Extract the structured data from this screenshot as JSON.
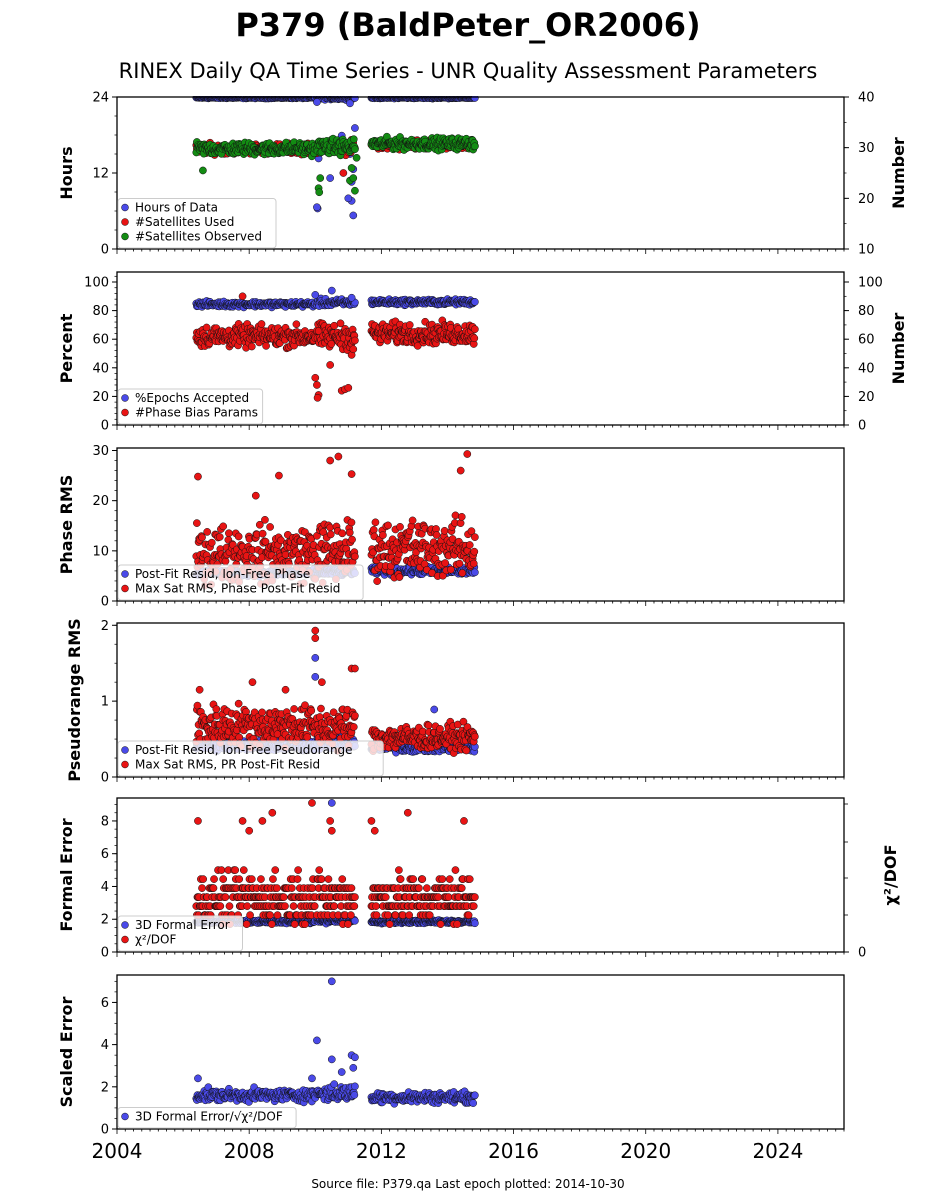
{
  "header": {
    "title": "P379 (BaldPeter_OR2006)",
    "subtitle": "RINEX Daily QA Time Series - UNR Quality Assessment Parameters",
    "footer": "Source file: P379.qa Last epoch plotted: 2014-10-30"
  },
  "colors": {
    "blue": "#4a4ae8",
    "red": "#e81414",
    "green": "#138c13",
    "edge": "#111111"
  },
  "chart_data": [
    {
      "type": "scatter",
      "panel": "hours",
      "ylabel": "Hours",
      "ylabel_right": "Number",
      "ylim": [
        0,
        24
      ],
      "yticks": [
        0,
        12,
        24
      ],
      "ylim_right": [
        10,
        40
      ],
      "yticks_right": [
        10,
        20,
        30,
        40
      ],
      "xlim": [
        2004,
        2026
      ],
      "legend_position": "lower-left",
      "series": [
        {
          "name": "Hours of Data",
          "color": "blue",
          "axis": "left",
          "segments": [
            {
              "x0": 2006.4,
              "x1": 2010.0,
              "base": 23.9,
              "spread": 0.1
            },
            {
              "x0": 2010.05,
              "x1": 2011.2,
              "base": 23.85,
              "spread": 0.2
            },
            {
              "x0": 2011.7,
              "x1": 2014.83,
              "base": 23.9,
              "spread": 0.1
            }
          ],
          "outliers": [
            [
              2010.05,
              23.2
            ],
            [
              2011.05,
              23.0
            ],
            [
              2010.07,
              6.4
            ],
            [
              2010.05,
              6.6
            ],
            [
              2010.45,
              11.2
            ],
            [
              2010.8,
              17.9
            ],
            [
              2011.15,
              5.3
            ],
            [
              2011.1,
              7.6
            ],
            [
              2011.2,
              19.1
            ],
            [
              2011.0,
              8.0
            ],
            [
              2011.15,
              12.6
            ],
            [
              2011.1,
              10.6
            ],
            [
              2011.05,
              15.0
            ],
            [
              2010.1,
              14.3
            ]
          ]
        },
        {
          "name": "#Satellites Used",
          "color": "red",
          "axis": "right",
          "segments": [
            {
              "x0": 2006.4,
              "x1": 2010.0,
              "base": 29.8,
              "spread": 0.8
            },
            {
              "x0": 2010.05,
              "x1": 2011.2,
              "base": 30.0,
              "spread": 1.0
            },
            {
              "x0": 2011.7,
              "x1": 2014.83,
              "base": 30.5,
              "spread": 0.8
            }
          ],
          "outliers": [
            [
              2010.85,
              25.0
            ],
            [
              2007.8,
              30.0
            ]
          ]
        },
        {
          "name": "#Satellites Observed",
          "color": "green",
          "axis": "right",
          "segments": [
            {
              "x0": 2006.4,
              "x1": 2010.0,
              "base": 29.8,
              "spread": 1.0
            },
            {
              "x0": 2010.05,
              "x1": 2011.2,
              "base": 30.2,
              "spread": 1.2
            },
            {
              "x0": 2011.7,
              "x1": 2014.83,
              "base": 30.8,
              "spread": 0.9
            }
          ],
          "outliers": [
            [
              2006.6,
              25.5
            ],
            [
              2010.1,
              22.0
            ],
            [
              2010.12,
              21.2
            ],
            [
              2011.05,
              23.5
            ],
            [
              2011.2,
              21.5
            ],
            [
              2011.15,
              24.0
            ],
            [
              2011.1,
              26.0
            ],
            [
              2010.15,
              24.0
            ],
            [
              2011.25,
              28.0
            ]
          ]
        }
      ]
    },
    {
      "type": "scatter",
      "panel": "percent",
      "ylabel": "Percent",
      "ylabel_right": "Number",
      "ylim": [
        0,
        107
      ],
      "yticks": [
        0,
        20,
        40,
        60,
        80,
        100
      ],
      "ylim_right": [
        0,
        107
      ],
      "yticks_right": [
        0,
        20,
        40,
        60,
        80,
        100
      ],
      "xlim": [
        2004,
        2026
      ],
      "legend_position": "lower-left",
      "series": [
        {
          "name": "%Epochs Accepted",
          "color": "blue",
          "segments": [
            {
              "x0": 2006.4,
              "x1": 2010.0,
              "base": 84.5,
              "spread": 1.5
            },
            {
              "x0": 2010.05,
              "x1": 2011.2,
              "base": 85.5,
              "spread": 2.0
            },
            {
              "x0": 2011.7,
              "x1": 2014.83,
              "base": 86.0,
              "spread": 1.5
            }
          ],
          "outliers": [
            [
              2010.0,
              91.0
            ],
            [
              2010.5,
              94.0
            ],
            [
              2011.1,
              89.0
            ]
          ]
        },
        {
          "name": "#Phase Bias Params",
          "color": "red",
          "segments": [
            {
              "x0": 2006.4,
              "x1": 2010.0,
              "base": 62.0,
              "spread": 6.0
            },
            {
              "x0": 2010.05,
              "x1": 2011.2,
              "base": 62.0,
              "spread": 7.0
            },
            {
              "x0": 2011.7,
              "x1": 2014.83,
              "base": 64.0,
              "spread": 6.0
            }
          ],
          "outliers": [
            [
              2007.8,
              90.0
            ],
            [
              2010.0,
              33.0
            ],
            [
              2010.05,
              28.0
            ],
            [
              2010.1,
              21.0
            ],
            [
              2010.07,
              19.0
            ],
            [
              2010.45,
              42.0
            ],
            [
              2010.8,
              24.0
            ],
            [
              2010.9,
              25.0
            ],
            [
              2011.0,
              26.0
            ],
            [
              2011.1,
              49.0
            ],
            [
              2011.15,
              53.0
            ]
          ]
        }
      ]
    },
    {
      "type": "scatter",
      "panel": "phase-rms",
      "ylabel": "Phase RMS",
      "ylim": [
        0,
        30.5
      ],
      "yticks": [
        0,
        10,
        20,
        30
      ],
      "xlim": [
        2004,
        2026
      ],
      "legend_position": "lower-left",
      "series": [
        {
          "name": "Post-Fit Resid, Ion-Free Phase",
          "color": "blue",
          "segments": [
            {
              "x0": 2006.4,
              "x1": 2010.0,
              "base": 5.6,
              "spread": 0.5
            },
            {
              "x0": 2010.05,
              "x1": 2011.2,
              "base": 5.8,
              "spread": 0.6
            },
            {
              "x0": 2011.7,
              "x1": 2014.83,
              "base": 6.0,
              "spread": 0.6
            }
          ],
          "outliers": []
        },
        {
          "name": "Max Sat RMS, Phase Post-Fit Resid",
          "color": "red",
          "segments": [
            {
              "x0": 2006.4,
              "x1": 2010.0,
              "base": 9.5,
              "spread": 4.5
            },
            {
              "x0": 2010.05,
              "x1": 2011.2,
              "base": 10.0,
              "spread": 5.0
            },
            {
              "x0": 2011.7,
              "x1": 2014.83,
              "base": 10.5,
              "spread": 4.5
            }
          ],
          "outliers": [
            [
              2006.45,
              24.8
            ],
            [
              2008.9,
              25.0
            ],
            [
              2010.45,
              28.0
            ],
            [
              2010.7,
              28.8
            ],
            [
              2011.1,
              25.3
            ],
            [
              2014.4,
              26.0
            ],
            [
              2014.6,
              29.3
            ],
            [
              2008.2,
              21.0
            ]
          ]
        }
      ]
    },
    {
      "type": "scatter",
      "panel": "pseudorange-rms",
      "ylabel": "Pseudorange RMS",
      "ylim": [
        0,
        2.03
      ],
      "yticks": [
        0,
        1,
        2
      ],
      "xlim": [
        2004,
        2026
      ],
      "legend_position": "lower-left",
      "series": [
        {
          "name": "Post-Fit Resid, Ion-Free Pseudorange",
          "color": "blue",
          "segments": [
            {
              "x0": 2006.4,
              "x1": 2010.0,
              "base": 0.42,
              "spread": 0.06
            },
            {
              "x0": 2010.05,
              "x1": 2011.2,
              "base": 0.45,
              "spread": 0.08
            },
            {
              "x0": 2011.7,
              "x1": 2014.83,
              "base": 0.39,
              "spread": 0.05
            }
          ],
          "outliers": [
            [
              2010.0,
              1.57
            ],
            [
              2010.0,
              1.32
            ],
            [
              2013.6,
              0.89
            ],
            [
              2011.1,
              0.85
            ]
          ]
        },
        {
          "name": "Max Sat RMS, PR Post-Fit Resid",
          "color": "red",
          "segments": [
            {
              "x0": 2006.4,
              "x1": 2010.0,
              "base": 0.68,
              "spread": 0.22
            },
            {
              "x0": 2010.05,
              "x1": 2011.2,
              "base": 0.65,
              "spread": 0.22
            },
            {
              "x0": 2011.7,
              "x1": 2014.83,
              "base": 0.52,
              "spread": 0.13
            }
          ],
          "outliers": [
            [
              2010.0,
              1.93
            ],
            [
              2010.0,
              1.83
            ],
            [
              2010.2,
              1.25
            ],
            [
              2011.1,
              1.43
            ],
            [
              2011.2,
              1.43
            ],
            [
              2006.5,
              1.15
            ],
            [
              2008.1,
              1.25
            ],
            [
              2009.1,
              1.15
            ]
          ]
        }
      ]
    },
    {
      "type": "scatter",
      "panel": "formal-error",
      "ylabel": "Formal Error",
      "ylabel_right": "χ²/DOF",
      "ylim": [
        0,
        9.4
      ],
      "yticks": [
        0,
        2,
        4,
        6,
        8
      ],
      "yticks_right": [
        0
      ],
      "xlim": [
        2004,
        2026
      ],
      "legend_position": "lower-left",
      "series": [
        {
          "name": "3D Formal Error",
          "color": "blue",
          "segments": [
            {
              "x0": 2006.4,
              "x1": 2010.0,
              "base": 1.85,
              "spread": 0.08
            },
            {
              "x0": 2010.05,
              "x1": 2011.2,
              "base": 1.9,
              "spread": 0.1
            },
            {
              "x0": 2011.7,
              "x1": 2014.83,
              "base": 1.85,
              "spread": 0.08
            }
          ],
          "outliers": [
            [
              2010.5,
              9.1
            ]
          ]
        },
        {
          "name": "χ²/DOF",
          "color": "red",
          "quantized": true,
          "segments": [
            {
              "x0": 2006.4,
              "x1": 2010.0,
              "base": 3.3,
              "spread": 1.2
            },
            {
              "x0": 2010.05,
              "x1": 2011.2,
              "base": 3.3,
              "spread": 1.3
            },
            {
              "x0": 2011.7,
              "x1": 2014.83,
              "base": 3.3,
              "spread": 1.2
            }
          ],
          "outliers": [
            [
              2006.45,
              8.0
            ],
            [
              2007.8,
              8.0
            ],
            [
              2008.0,
              7.4
            ],
            [
              2008.4,
              8.0
            ],
            [
              2008.7,
              8.5
            ],
            [
              2009.9,
              9.1
            ],
            [
              2010.45,
              8.0
            ],
            [
              2010.5,
              7.4
            ],
            [
              2011.7,
              8.0
            ],
            [
              2012.8,
              8.5
            ],
            [
              2014.5,
              8.0
            ],
            [
              2011.8,
              7.4
            ]
          ]
        }
      ]
    },
    {
      "type": "scatter",
      "panel": "scaled-error",
      "ylabel": "Scaled Error",
      "ylim": [
        0,
        7.3
      ],
      "yticks": [
        0,
        2,
        4,
        6
      ],
      "xlim": [
        2004,
        2026
      ],
      "xticks": [
        2004,
        2008,
        2012,
        2016,
        2020,
        2024
      ],
      "legend_position": "lower-left",
      "series": [
        {
          "name": "3D Formal Error/√χ²/DOF",
          "color": "blue",
          "segments": [
            {
              "x0": 2006.4,
              "x1": 2010.0,
              "base": 1.6,
              "spread": 0.22
            },
            {
              "x0": 2010.05,
              "x1": 2011.2,
              "base": 1.7,
              "spread": 0.3
            },
            {
              "x0": 2011.7,
              "x1": 2014.83,
              "base": 1.5,
              "spread": 0.2
            }
          ],
          "outliers": [
            [
              2010.5,
              7.0
            ],
            [
              2010.05,
              4.2
            ],
            [
              2010.5,
              3.3
            ],
            [
              2011.1,
              3.5
            ],
            [
              2011.2,
              3.4
            ],
            [
              2006.45,
              2.4
            ],
            [
              2009.9,
              2.4
            ],
            [
              2010.8,
              2.7
            ],
            [
              2011.15,
              2.9
            ]
          ]
        }
      ]
    }
  ]
}
